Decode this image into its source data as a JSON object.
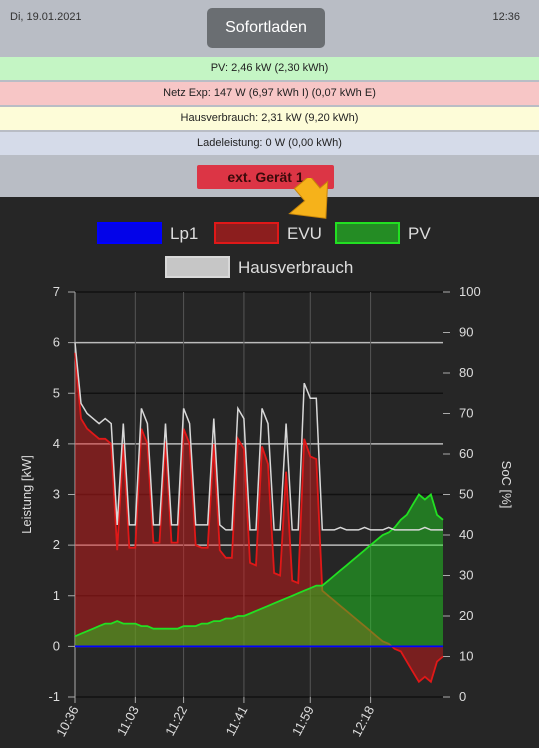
{
  "header": {
    "date": "Di, 19.01.2021",
    "button": "Sofortladen",
    "time": "12:36"
  },
  "status": [
    "PV: 2,46 kW (2,30 kWh)",
    "Netz Exp: 147 W (6,97 kWh I) (0,07 kWh E)",
    "Hausverbrauch: 2,31 kW (9,20 kWh)",
    "Ladeleistung: 0 W (0,00 kWh)"
  ],
  "device_button": "ext. Gerät 1",
  "chart_data": {
    "type": "line",
    "categories": [
      "10:36",
      null,
      null,
      null,
      null,
      null,
      null,
      null,
      null,
      null,
      "11:03",
      null,
      null,
      null,
      null,
      null,
      null,
      null,
      "11:22",
      null,
      null,
      null,
      null,
      null,
      null,
      null,
      null,
      null,
      "11:41",
      null,
      null,
      null,
      null,
      null,
      null,
      null,
      null,
      null,
      null,
      "11:59",
      null,
      null,
      null,
      null,
      null,
      null,
      null,
      null,
      null,
      "12:18",
      null,
      null,
      null,
      null,
      null,
      null,
      null,
      null,
      null,
      null,
      null,
      null
    ],
    "series": [
      {
        "name": "Lp1",
        "color": "#0000ff",
        "fill": false,
        "values": [
          0,
          0,
          0,
          0,
          0,
          0,
          0,
          0,
          0,
          0,
          0,
          0,
          0,
          0,
          0,
          0,
          0,
          0,
          0,
          0,
          0,
          0,
          0,
          0,
          0,
          0,
          0,
          0,
          0,
          0,
          0,
          0,
          0,
          0,
          0,
          0,
          0,
          0,
          0,
          0,
          0,
          0,
          0,
          0,
          0,
          0,
          0,
          0,
          0,
          0,
          0,
          0,
          0,
          0,
          0,
          0,
          0,
          0,
          0,
          0,
          0,
          0
        ]
      },
      {
        "name": "EVU",
        "color": "#e01818",
        "fill": true,
        "values": [
          5.8,
          4.5,
          4.3,
          4.2,
          4.1,
          4.1,
          4.0,
          1.9,
          4.0,
          1.95,
          1.95,
          4.3,
          4.0,
          2.05,
          2.05,
          4.05,
          2.05,
          2.05,
          4.3,
          4.0,
          2.0,
          1.95,
          1.95,
          4.0,
          1.9,
          1.75,
          1.75,
          4.1,
          3.9,
          1.65,
          1.6,
          3.95,
          3.6,
          1.45,
          1.4,
          3.45,
          1.3,
          1.25,
          4.1,
          3.75,
          3.7,
          1.1,
          1.0,
          0.9,
          0.8,
          0.7,
          0.6,
          0.5,
          0.4,
          0.3,
          0.2,
          0.1,
          0.05,
          -0.05,
          -0.1,
          -0.3,
          -0.5,
          -0.7,
          -0.6,
          -0.7,
          -0.3,
          -0.2
        ]
      },
      {
        "name": "PV",
        "color": "#22e022",
        "fill": true,
        "values": [
          0.2,
          0.25,
          0.3,
          0.35,
          0.4,
          0.45,
          0.45,
          0.5,
          0.45,
          0.45,
          0.45,
          0.4,
          0.4,
          0.35,
          0.35,
          0.35,
          0.35,
          0.35,
          0.4,
          0.4,
          0.4,
          0.45,
          0.45,
          0.5,
          0.5,
          0.55,
          0.55,
          0.6,
          0.6,
          0.65,
          0.7,
          0.75,
          0.8,
          0.85,
          0.9,
          0.95,
          1.0,
          1.05,
          1.1,
          1.15,
          1.2,
          1.2,
          1.3,
          1.4,
          1.5,
          1.6,
          1.7,
          1.8,
          1.9,
          2.0,
          2.1,
          2.2,
          2.25,
          2.35,
          2.5,
          2.6,
          2.8,
          3.0,
          2.9,
          3.0,
          2.6,
          2.5
        ]
      },
      {
        "name": "Hausverbrauch",
        "color": "#d8d8d8",
        "fill": false,
        "values": [
          6.0,
          4.8,
          4.6,
          4.5,
          4.4,
          4.5,
          4.4,
          2.4,
          4.4,
          2.4,
          2.4,
          4.7,
          4.4,
          2.4,
          2.4,
          4.4,
          2.4,
          2.4,
          4.7,
          4.4,
          2.4,
          2.4,
          2.4,
          4.5,
          2.4,
          2.3,
          2.3,
          4.7,
          4.5,
          2.3,
          2.3,
          4.7,
          4.4,
          2.3,
          2.3,
          4.4,
          2.3,
          2.3,
          5.2,
          4.9,
          4.9,
          2.3,
          2.3,
          2.3,
          2.35,
          2.3,
          2.3,
          2.3,
          2.35,
          2.3,
          2.3,
          2.3,
          2.35,
          2.3,
          2.3,
          2.3,
          2.3,
          2.3,
          2.35,
          2.3,
          2.3,
          2.3
        ]
      }
    ],
    "ylim": [
      -1,
      7
    ],
    "yticks": [
      -1,
      0,
      1,
      2,
      3,
      4,
      5,
      6,
      7
    ],
    "y2lim": [
      0,
      100
    ],
    "y2ticks": [
      0,
      10,
      20,
      30,
      40,
      50,
      60,
      70,
      80,
      90,
      100
    ],
    "ylabel": "Leistung [kW]",
    "y2label": "SoC [%]",
    "grid": true
  }
}
